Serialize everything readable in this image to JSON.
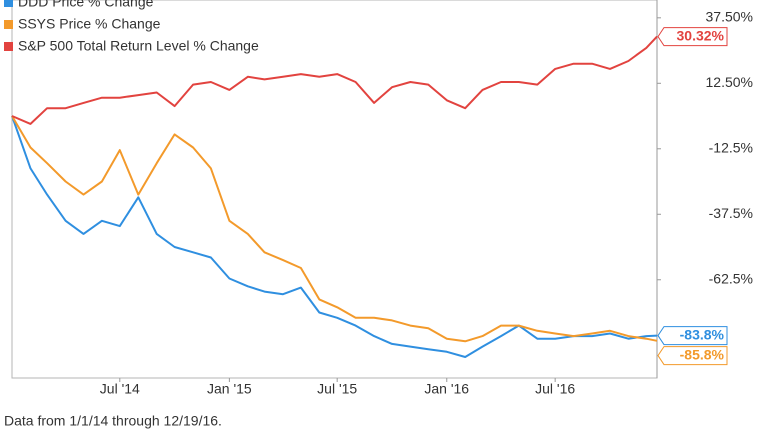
{
  "chart_data": {
    "type": "line",
    "x": [
      "2014-01-01",
      "2014-02-01",
      "2014-03-01",
      "2014-04-01",
      "2014-05-01",
      "2014-06-01",
      "2014-07-01",
      "2014-08-01",
      "2014-09-01",
      "2014-10-01",
      "2014-11-01",
      "2014-12-01",
      "2015-01-01",
      "2015-02-01",
      "2015-03-01",
      "2015-04-01",
      "2015-05-01",
      "2015-06-01",
      "2015-07-01",
      "2015-08-01",
      "2015-09-01",
      "2015-10-01",
      "2015-11-01",
      "2015-12-01",
      "2016-01-01",
      "2016-02-01",
      "2016-03-01",
      "2016-04-01",
      "2016-05-01",
      "2016-06-01",
      "2016-07-01",
      "2016-08-01",
      "2016-09-01",
      "2016-10-01",
      "2016-11-01",
      "2016-12-01",
      "2016-12-19"
    ],
    "series": [
      {
        "name": "DDD Price % Change",
        "color": "#2f8fe0",
        "last_label": "-83.8%",
        "values": [
          0,
          -20,
          -30,
          -40,
          -45,
          -40,
          -42,
          -31,
          -45,
          -50,
          -52,
          -54,
          -62,
          -65,
          -67,
          -68,
          -65.5,
          -75,
          -77,
          -80,
          -84,
          -87,
          -88,
          -89,
          -90,
          -92,
          -88,
          -84,
          -80,
          -85,
          -85,
          -84,
          -84,
          -83,
          -85,
          -84,
          -83.8
        ]
      },
      {
        "name": "SSYS Price % Change",
        "color": "#f39a2b",
        "last_label": "-85.8%",
        "values": [
          0,
          -12,
          -18,
          -25,
          -30,
          -25,
          -13,
          -30,
          -18,
          -7,
          -12,
          -20,
          -40,
          -45,
          -52,
          -55,
          -58,
          -70,
          -73,
          -77,
          -77,
          -78,
          -80,
          -81,
          -85,
          -86,
          -84,
          -80,
          -80,
          -82,
          -83,
          -84,
          -83,
          -82,
          -84,
          -85,
          -85.8
        ]
      },
      {
        "name": "S&P 500 Total Return Level % Change",
        "color": "#e2433f",
        "last_label": "30.32%",
        "values": [
          0,
          -3,
          3,
          3,
          5,
          7,
          7,
          8,
          9,
          3.8,
          12,
          13,
          10,
          15,
          14,
          15,
          16,
          15,
          16,
          13,
          5,
          11,
          13,
          12,
          6,
          3,
          10,
          13,
          13,
          12,
          18,
          20,
          20,
          18,
          21,
          26,
          30.32
        ]
      }
    ],
    "xlim": [
      "2014-01-01",
      "2016-12-19"
    ],
    "xticks": [
      {
        "value": "2014-07-01",
        "label": "Jul '14"
      },
      {
        "value": "2015-01-01",
        "label": "Jan '15"
      },
      {
        "value": "2015-07-01",
        "label": "Jul '15"
      },
      {
        "value": "2016-01-01",
        "label": "Jan '16"
      },
      {
        "value": "2016-07-01",
        "label": "Jul '16"
      }
    ],
    "ylim": [
      -100,
      44.3
    ],
    "yticks": [
      {
        "value": 37.5,
        "label": "37.50%"
      },
      {
        "value": 12.5,
        "label": "12.50%"
      },
      {
        "value": -12.5,
        "label": "-12.5%"
      },
      {
        "value": -37.5,
        "label": "-37.5%"
      },
      {
        "value": -62.5,
        "label": "-62.5%"
      }
    ],
    "note": "Data from 1/1/14 through 12/19/16."
  }
}
